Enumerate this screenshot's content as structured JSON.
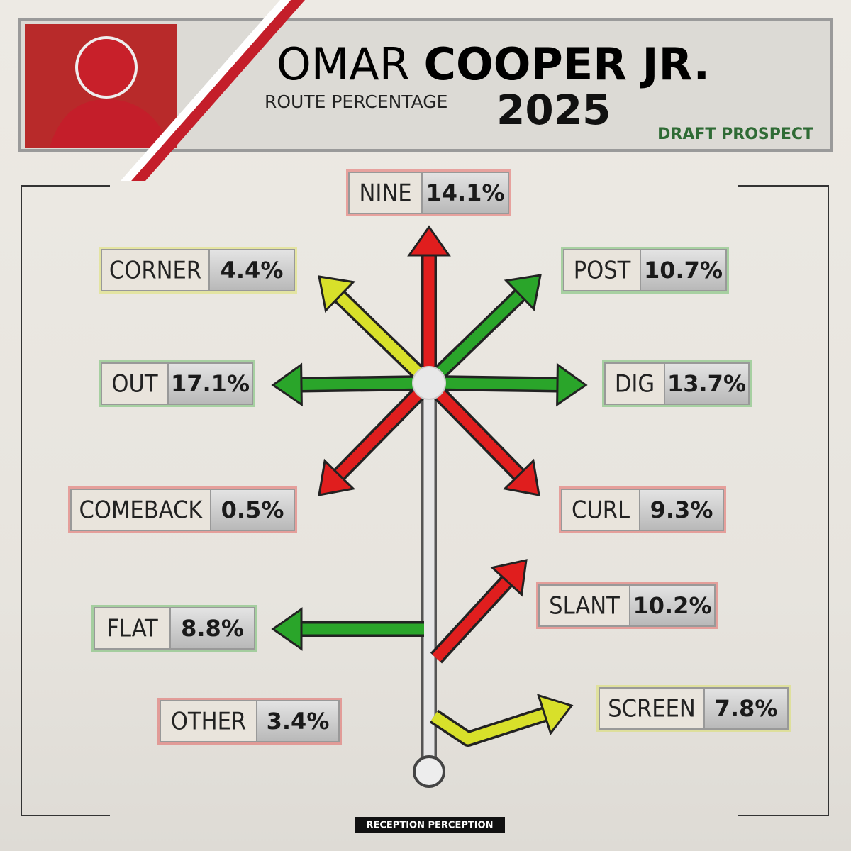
{
  "header": {
    "name_first": "OMAR",
    "name_last": "COOPER JR.",
    "subtitle": "ROUTE PERCENTAGE",
    "year": "2025",
    "tag": "DRAFT PROSPECT"
  },
  "routes": [
    {
      "label": "NINE",
      "value": "14.1%"
    },
    {
      "label": "CORNER",
      "value": "4.4%"
    },
    {
      "label": "POST",
      "value": "10.7%"
    },
    {
      "label": "OUT",
      "value": "17.1%"
    },
    {
      "label": "DIG",
      "value": "13.7%"
    },
    {
      "label": "COMEBACK",
      "value": "0.5%"
    },
    {
      "label": "CURL",
      "value": "9.3%"
    },
    {
      "label": "SLANT",
      "value": "10.2%"
    },
    {
      "label": "FLAT",
      "value": "8.8%"
    },
    {
      "label": "OTHER",
      "value": "3.4%"
    },
    {
      "label": "SCREEN",
      "value": "7.8%"
    }
  ],
  "footer": "RECEPTION PERCEPTION"
}
